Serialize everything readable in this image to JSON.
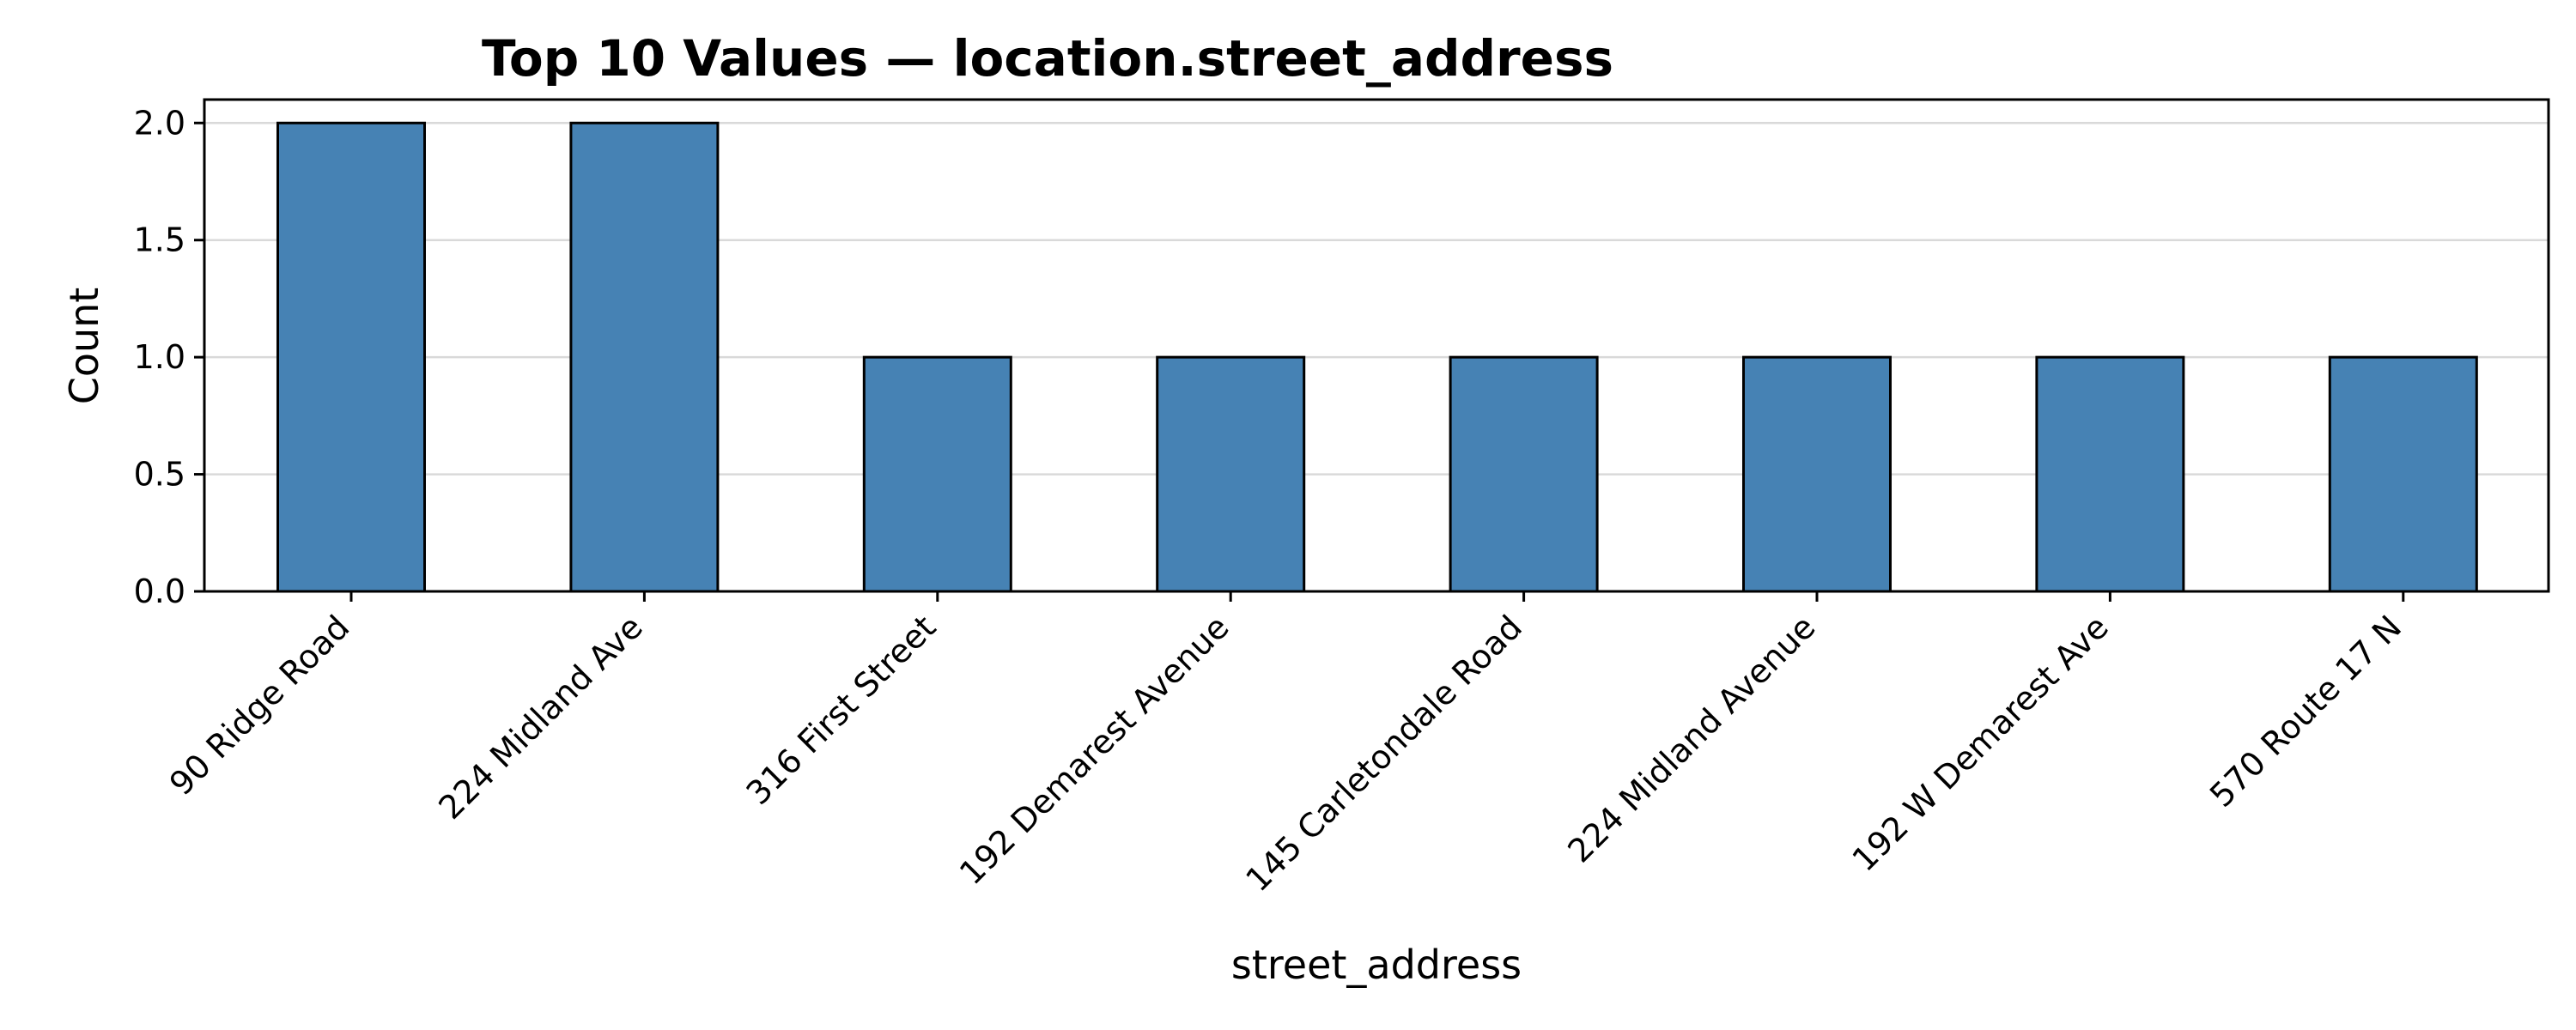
{
  "chart_data": {
    "type": "bar",
    "title": "Top 10 Values — location.street_address",
    "xlabel": "street_address",
    "ylabel": "Count",
    "categories": [
      "90 Ridge Road",
      "224 Midland Ave",
      "316 First Street",
      "192 Demarest Avenue",
      "145 Carletondale Road",
      "224 Midland Avenue",
      "192 W Demarest Ave",
      "570 Route 17 N"
    ],
    "values": [
      2,
      2,
      1,
      1,
      1,
      1,
      1,
      1
    ],
    "ylim": [
      0,
      2.1
    ],
    "yticks": [
      "0.0",
      "0.5",
      "1.0",
      "1.5",
      "2.0"
    ],
    "grid": "horizontal",
    "bar_color": "#4682b4",
    "edge_color": "#000000",
    "grid_color": "#d9d9d9"
  }
}
